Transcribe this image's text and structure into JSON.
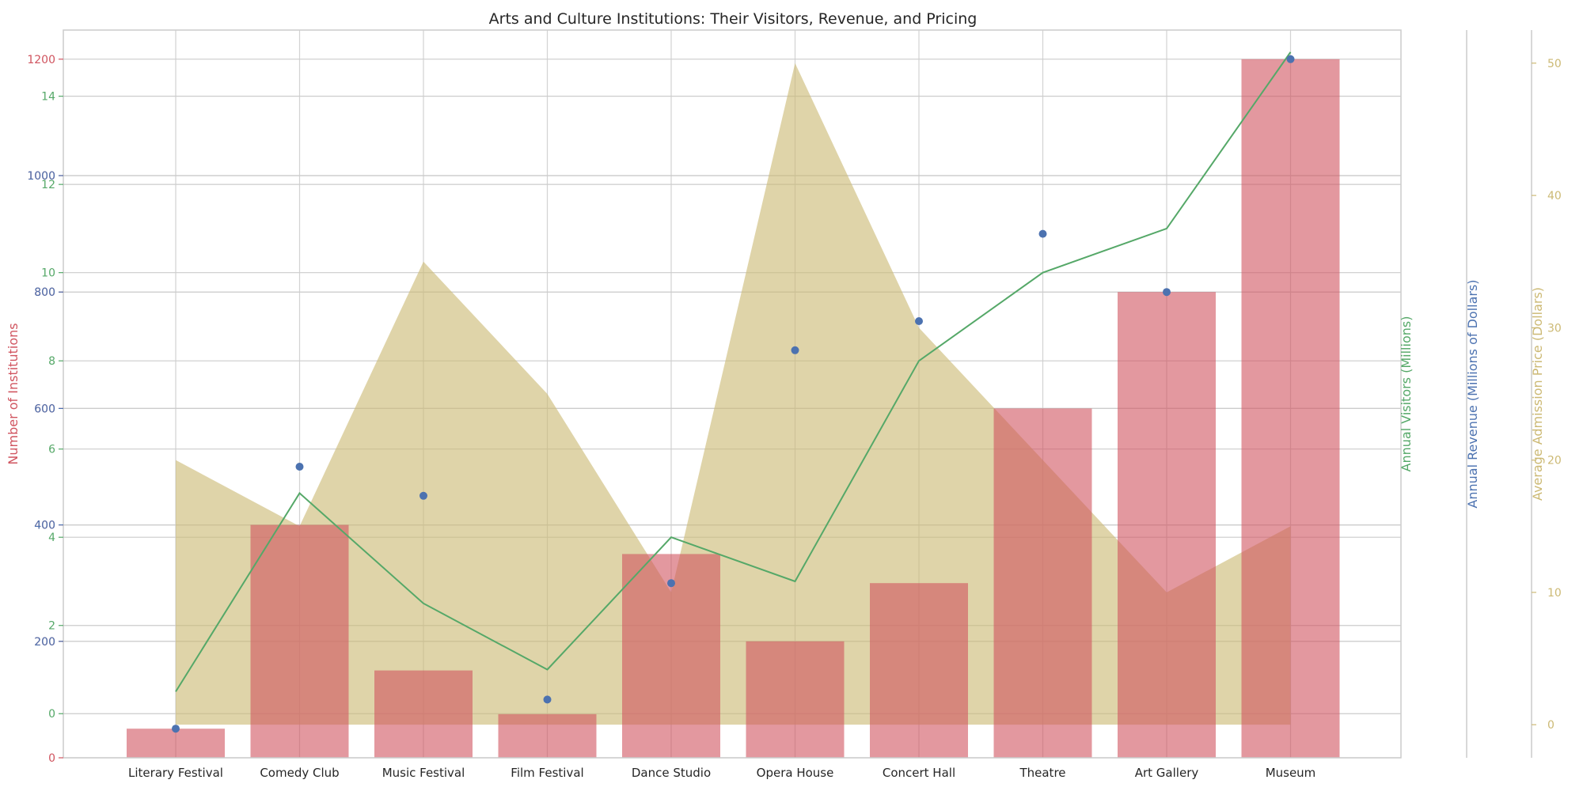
{
  "chart_data": {
    "type": "bar",
    "title": "Arts and Culture Institutions: Their Visitors, Revenue, and Pricing",
    "categories": [
      "Literary Festival",
      "Comedy Club",
      "Music Festival",
      "Film Festival",
      "Dance Studio",
      "Opera House",
      "Concert Hall",
      "Theatre",
      "Art Gallery",
      "Museum"
    ],
    "series": [
      {
        "name": "Number of Institutions",
        "kind": "bar",
        "axis": "institutions",
        "color": "#d0545f",
        "values": [
          50,
          400,
          150,
          75,
          350,
          200,
          300,
          600,
          800,
          1200
        ]
      },
      {
        "name": "Annual Visitors (Millions)",
        "kind": "line",
        "axis": "visitors",
        "color": "#55a868",
        "values": [
          0.5,
          5,
          2.5,
          1,
          4,
          3,
          8,
          10,
          11,
          15
        ]
      },
      {
        "name": "Annual Revenue (Millions of Dollars)",
        "kind": "scatter",
        "axis": "revenue",
        "color": "#4c72b0",
        "values": [
          50,
          500,
          450,
          100,
          300,
          700,
          750,
          900,
          800,
          1200
        ]
      },
      {
        "name": "Average Admission Price (Dollars)",
        "kind": "area",
        "axis": "price",
        "color": "#ccb974",
        "values": [
          20,
          15,
          35,
          25,
          10,
          50,
          30,
          20,
          10,
          15
        ]
      }
    ],
    "axes": {
      "institutions": {
        "label": "Number of Institutions",
        "color": "#d0545f",
        "ylim": [
          0,
          1250
        ],
        "ticks": [
          0,
          200,
          400,
          600,
          800,
          1000,
          1200
        ]
      },
      "visitors": {
        "label": "Annual Visitors (Millions)",
        "color": "#55a868",
        "ylim": [
          -1,
          15.5
        ],
        "ticks": [
          0,
          2,
          4,
          6,
          8,
          10,
          12,
          14
        ]
      },
      "revenue": {
        "label": "Annual Revenue (Millions of Dollars)",
        "color": "#4c72b0",
        "ylim": [
          0,
          1250
        ],
        "ticks": [
          200,
          400,
          600,
          800,
          1000
        ]
      },
      "price": {
        "label": "Average Admission Price (Dollars)",
        "color": "#ccb974",
        "ylim": [
          -2.5,
          52.5
        ],
        "ticks": [
          0,
          10,
          20,
          30,
          40,
          50
        ]
      }
    },
    "legend": "none",
    "grid": true
  }
}
